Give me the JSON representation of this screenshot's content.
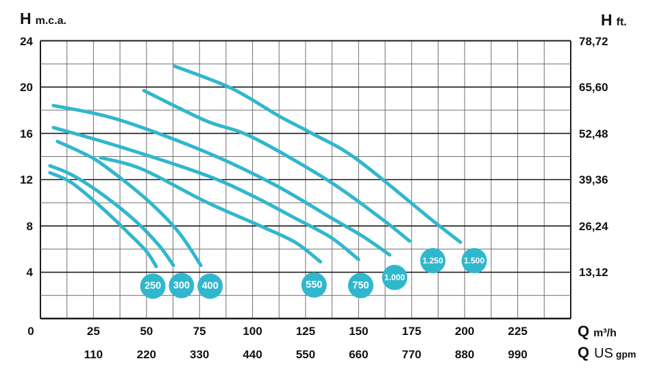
{
  "axes": {
    "left": {
      "symbol": "H",
      "unit": "m.c.a.",
      "ticks": [
        "24",
        "20",
        "16",
        "12",
        "8",
        "4"
      ],
      "tick_values": [
        24,
        20,
        16,
        12,
        8,
        4
      ]
    },
    "right": {
      "symbol": "H",
      "unit": "ft.",
      "ticks": [
        "78,72",
        "65,60",
        "52,48",
        "39,36",
        "26,24",
        "13,12"
      ],
      "tick_values": [
        24,
        20,
        16,
        12,
        8,
        4
      ]
    },
    "bottom_primary": {
      "symbol": "Q",
      "unit": "m³/h",
      "ticks": [
        "0",
        "25",
        "50",
        "75",
        "100",
        "125",
        "150",
        "175",
        "200",
        "225"
      ],
      "tick_values": [
        0,
        25,
        50,
        75,
        100,
        125,
        150,
        175,
        200,
        225
      ]
    },
    "bottom_secondary": {
      "symbol": "Q",
      "unit_big": "US",
      "unit_small": "gpm",
      "ticks": [
        "110",
        "220",
        "330",
        "440",
        "550",
        "660",
        "770",
        "880",
        "990"
      ],
      "tick_values": [
        25,
        50,
        75,
        100,
        125,
        150,
        175,
        200,
        225
      ]
    }
  },
  "chart_data": {
    "type": "line",
    "title": "Pump performance curves H vs Q",
    "xlabel": "Q (m³/h)",
    "ylabel": "H (m.c.a.)",
    "xlim": [
      0,
      250
    ],
    "ylim": [
      0,
      24
    ],
    "x_minor_step": 12.5,
    "y_minor_step": 2,
    "y_major_step": 4,
    "grid": true,
    "legend_position": "on-curve-bubbles",
    "series": [
      {
        "name": "250",
        "points": [
          [
            4.5,
            12.6
          ],
          [
            15,
            11.7
          ],
          [
            29.4,
            9.5
          ],
          [
            42,
            7.3
          ],
          [
            50,
            5.8
          ],
          [
            54.6,
            4.5
          ]
        ]
      },
      {
        "name": "300",
        "points": [
          [
            4.5,
            13.2
          ],
          [
            15,
            12.4
          ],
          [
            29.4,
            10.7
          ],
          [
            45,
            8.4
          ],
          [
            56,
            6.3
          ],
          [
            62.7,
            4.6
          ]
        ]
      },
      {
        "name": "400",
        "points": [
          [
            8,
            15.3
          ],
          [
            20,
            14.3
          ],
          [
            29.4,
            13.3
          ],
          [
            50,
            10.3
          ],
          [
            65,
            7.5
          ],
          [
            75.6,
            4.6
          ]
        ]
      },
      {
        "name": "550",
        "points": [
          [
            28.4,
            13.9
          ],
          [
            48,
            12.9
          ],
          [
            77.8,
            10.1
          ],
          [
            103.7,
            8.0
          ],
          [
            120,
            6.6
          ],
          [
            132,
            4.9
          ]
        ]
      },
      {
        "name": "750",
        "points": [
          [
            6.1,
            16.5
          ],
          [
            36.5,
            14.9
          ],
          [
            77.8,
            12.4
          ],
          [
            100,
            10.6
          ],
          [
            120.8,
            8.6
          ],
          [
            137,
            7.0
          ],
          [
            150,
            5.1
          ]
        ]
      },
      {
        "name": "1.000",
        "points": [
          [
            6.1,
            18.4
          ],
          [
            36.5,
            17.2
          ],
          [
            77.8,
            14.4
          ],
          [
            110,
            11.6
          ],
          [
            138,
            8.6
          ],
          [
            152,
            7.1
          ],
          [
            164.7,
            5.5
          ]
        ]
      },
      {
        "name": "1.250",
        "points": [
          [
            48.8,
            19.7
          ],
          [
            77.8,
            17.1
          ],
          [
            99.5,
            15.7
          ],
          [
            135,
            12.0
          ],
          [
            161,
            8.6
          ],
          [
            174,
            6.7
          ]
        ]
      },
      {
        "name": "1.500",
        "points": [
          [
            63.3,
            21.8
          ],
          [
            90,
            19.9
          ],
          [
            112.4,
            17.5
          ],
          [
            128,
            16.0
          ],
          [
            148.9,
            13.8
          ],
          [
            184,
            8.6
          ],
          [
            198,
            6.6
          ]
        ]
      }
    ],
    "curve_labels": [
      {
        "text": "250",
        "q": 53,
        "h": 2.8
      },
      {
        "text": "300",
        "q": 66.5,
        "h": 2.85
      },
      {
        "text": "400",
        "q": 80,
        "h": 2.8
      },
      {
        "text": "550",
        "q": 129,
        "h": 2.9
      },
      {
        "text": "750",
        "q": 151,
        "h": 2.85
      },
      {
        "text": "1.000",
        "q": 167,
        "h": 3.55
      },
      {
        "text": "1.250",
        "q": 185,
        "h": 5.0
      },
      {
        "text": "1.500",
        "q": 204.5,
        "h": 5.0
      }
    ]
  },
  "colors": {
    "curve": "#31b7cd",
    "bubble_fill": "#31b7cd",
    "bubble_text": "#ffffff",
    "grid_minor": "#6f6f6f",
    "grid_major": "#1b1b1b",
    "text": "#111111"
  }
}
